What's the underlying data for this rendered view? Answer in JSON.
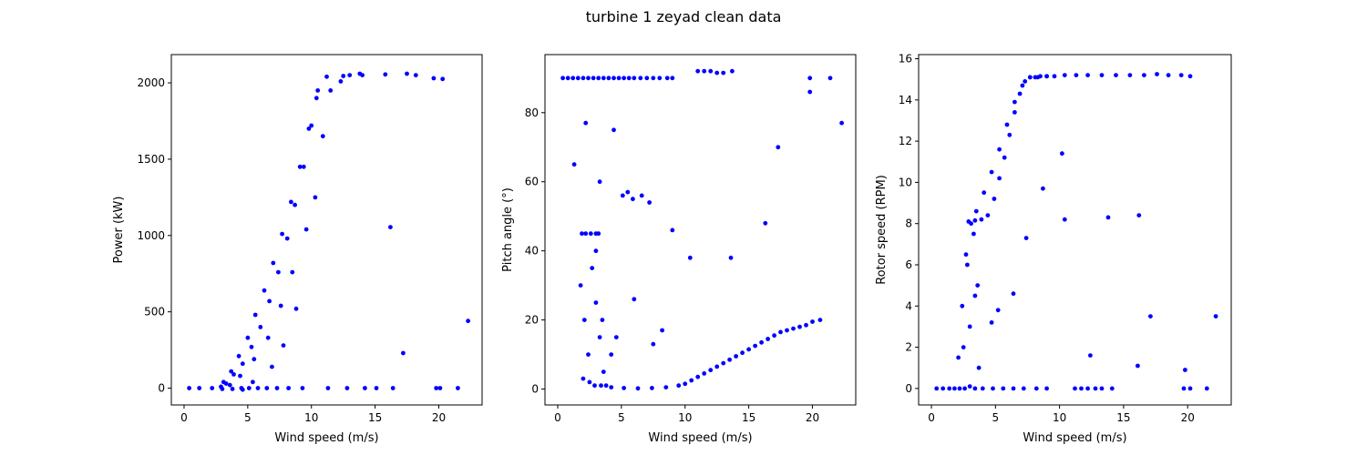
{
  "figure": {
    "title": "turbine 1 zeyad clean data"
  },
  "chart_data": [
    {
      "type": "scatter",
      "xlabel": "Wind speed (m/s)",
      "ylabel": "Power (kW)",
      "xlim": [
        -1.0,
        23.4
      ],
      "ylim": [
        -110,
        2185
      ],
      "xticks": [
        0,
        5,
        10,
        15,
        20
      ],
      "yticks": [
        0,
        500,
        1000,
        1500,
        2000
      ],
      "marker_color": "#0000ff",
      "x": [
        0.4,
        1.2,
        2.2,
        3.0,
        3.8,
        4.5,
        5.1,
        5.8,
        6.5,
        7.3,
        8.2,
        9.3,
        3.1,
        3.7,
        4.3,
        5.0,
        5.6,
        6.3,
        7.0,
        7.7,
        8.4,
        9.1,
        9.8,
        10.4,
        11.2,
        12.5,
        14.0,
        15.8,
        17.5,
        18.2,
        19.6,
        20.3,
        3.6,
        4.4,
        5.5,
        6.6,
        7.6,
        8.5,
        9.6,
        10.9,
        2.9,
        3.3,
        3.9,
        4.6,
        5.3,
        6.0,
        6.7,
        7.4,
        8.1,
        8.7,
        9.4,
        10.0,
        10.5,
        4.6,
        5.4,
        6.9,
        7.8,
        8.8,
        10.3,
        11.5,
        12.3,
        13.0,
        13.8,
        16.2,
        17.2,
        22.3,
        11.3,
        12.8,
        14.2,
        15.1,
        16.4,
        19.8,
        20.1,
        21.5
      ],
      "y": [
        0,
        0,
        0,
        -5,
        -5,
        0,
        0,
        0,
        0,
        0,
        0,
        0,
        40,
        110,
        210,
        330,
        480,
        640,
        820,
        1010,
        1220,
        1450,
        1700,
        1900,
        2040,
        2045,
        2050,
        2055,
        2060,
        2050,
        2030,
        2025,
        20,
        80,
        190,
        330,
        540,
        760,
        1040,
        1650,
        10,
        30,
        90,
        160,
        270,
        400,
        570,
        760,
        980,
        1200,
        1450,
        1720,
        1950,
        -10,
        40,
        140,
        280,
        520,
        1250,
        1950,
        2010,
        2050,
        2060,
        1055,
        230,
        440,
        0,
        0,
        0,
        0,
        0,
        0,
        0,
        0
      ]
    },
    {
      "type": "scatter",
      "xlabel": "Wind speed (m/s)",
      "ylabel": "Pitch angle (°)",
      "xlim": [
        -1.0,
        23.4
      ],
      "ylim": [
        -4.6,
        96.8
      ],
      "xticks": [
        0,
        5,
        10,
        15,
        20
      ],
      "yticks": [
        0,
        20,
        40,
        60,
        80
      ],
      "marker_color": "#0000ff",
      "x": [
        0.4,
        0.8,
        1.2,
        1.6,
        2.0,
        2.4,
        2.8,
        3.2,
        3.6,
        4.0,
        4.4,
        4.8,
        5.2,
        5.6,
        6.0,
        6.5,
        7.0,
        7.5,
        8.0,
        8.6,
        9.0,
        11.0,
        11.5,
        12.0,
        12.5,
        13.0,
        13.7,
        19.8,
        21.4,
        1.9,
        2.2,
        2.6,
        3.0,
        3.2,
        1.8,
        2.1,
        2.4,
        2.7,
        3.0,
        3.3,
        3.6,
        2.0,
        2.5,
        2.9,
        3.4,
        3.8,
        4.2,
        5.2,
        6.3,
        7.4,
        8.5,
        9.5,
        10.0,
        10.5,
        11.0,
        11.5,
        12.0,
        12.5,
        13.0,
        13.5,
        14.0,
        14.5,
        15.0,
        15.5,
        16.0,
        16.5,
        17.0,
        17.5,
        18.0,
        18.5,
        19.0,
        19.5,
        20.0,
        20.6,
        1.3,
        2.2,
        3.3,
        4.4,
        5.1,
        5.5,
        5.9,
        6.6,
        7.2,
        9.0,
        10.4,
        13.6,
        16.3,
        17.3,
        19.8,
        22.3,
        3.0,
        3.5,
        4.2,
        4.6,
        6.0,
        7.5,
        8.2
      ],
      "y": [
        90,
        90,
        90,
        90,
        90,
        90,
        90,
        90,
        90,
        90,
        90,
        90,
        90,
        90,
        90,
        90,
        90,
        90,
        90,
        90,
        90,
        92,
        92,
        92,
        91.5,
        91.5,
        92,
        90,
        90,
        45,
        45,
        45,
        45,
        45,
        30,
        20,
        10,
        35,
        25,
        15,
        5,
        3,
        2,
        1,
        1,
        1,
        0.5,
        0.3,
        0.2,
        0.3,
        0.5,
        1,
        1.5,
        2.5,
        3.5,
        4.5,
        5.5,
        6.5,
        7.5,
        8.5,
        9.5,
        10.5,
        11.5,
        12.5,
        13.5,
        14.5,
        15.5,
        16.5,
        17,
        17.5,
        18,
        18.5,
        19.5,
        20,
        65,
        77,
        60,
        75,
        56,
        57,
        55,
        56,
        54,
        46,
        38,
        38,
        48,
        70,
        86,
        77,
        40,
        20,
        10,
        15,
        26,
        13,
        17
      ]
    },
    {
      "type": "scatter",
      "xlabel": "Wind speed (m/s)",
      "ylabel": "Rotor speed (RPM)",
      "xlim": [
        -1.0,
        23.4
      ],
      "ylim": [
        -0.8,
        16.2
      ],
      "xticks": [
        0,
        5,
        10,
        15,
        20
      ],
      "yticks": [
        0,
        2,
        4,
        6,
        8,
        10,
        12,
        14,
        16
      ],
      "marker_color": "#0000ff",
      "x": [
        0.4,
        0.9,
        1.4,
        1.8,
        2.2,
        2.6,
        3.0,
        3.4,
        4.0,
        4.8,
        5.6,
        6.4,
        7.2,
        8.2,
        9.0,
        11.2,
        11.7,
        12.2,
        12.8,
        13.3,
        14.1,
        19.7,
        20.2,
        21.5,
        2.1,
        2.4,
        2.7,
        3.0,
        3.3,
        3.6,
        2.5,
        2.8,
        3.1,
        3.4,
        3.7,
        2.9,
        3.4,
        3.9,
        4.4,
        4.9,
        5.3,
        5.7,
        6.1,
        6.5,
        6.9,
        7.3,
        7.7,
        8.1,
        8.5,
        9.0,
        9.6,
        10.4,
        11.3,
        12.2,
        13.3,
        14.4,
        15.5,
        16.6,
        17.6,
        18.5,
        19.5,
        20.2,
        3.5,
        4.1,
        4.7,
        5.3,
        5.9,
        6.5,
        7.1,
        7.7,
        8.3,
        9.0,
        8.7,
        10.2,
        10.4,
        13.8,
        16.2,
        17.1,
        22.2,
        12.4,
        16.1,
        19.8,
        5.2,
        4.7,
        6.4,
        7.4
      ],
      "y": [
        0,
        0,
        0,
        0,
        0,
        0,
        0.1,
        0,
        0,
        0,
        0,
        0,
        0,
        0,
        0,
        0,
        0,
        0,
        0,
        0,
        0,
        0,
        0,
        0,
        1.5,
        4,
        6.5,
        3,
        7.5,
        5,
        2,
        6,
        8,
        4.5,
        1,
        8.1,
        8.15,
        8.2,
        8.4,
        9.2,
        10.2,
        11.2,
        12.3,
        13.4,
        14.3,
        14.9,
        15.1,
        15.1,
        15.15,
        15.15,
        15.15,
        15.2,
        15.2,
        15.2,
        15.2,
        15.2,
        15.2,
        15.2,
        15.25,
        15.2,
        15.2,
        15.15,
        8.6,
        9.5,
        10.5,
        11.6,
        12.8,
        13.9,
        14.7,
        15.1,
        15.1,
        15.15,
        9.7,
        11.4,
        8.2,
        8.3,
        8.4,
        3.5,
        3.5,
        1.6,
        1.1,
        0.9,
        3.8,
        3.2,
        4.6,
        7.3
      ]
    }
  ]
}
